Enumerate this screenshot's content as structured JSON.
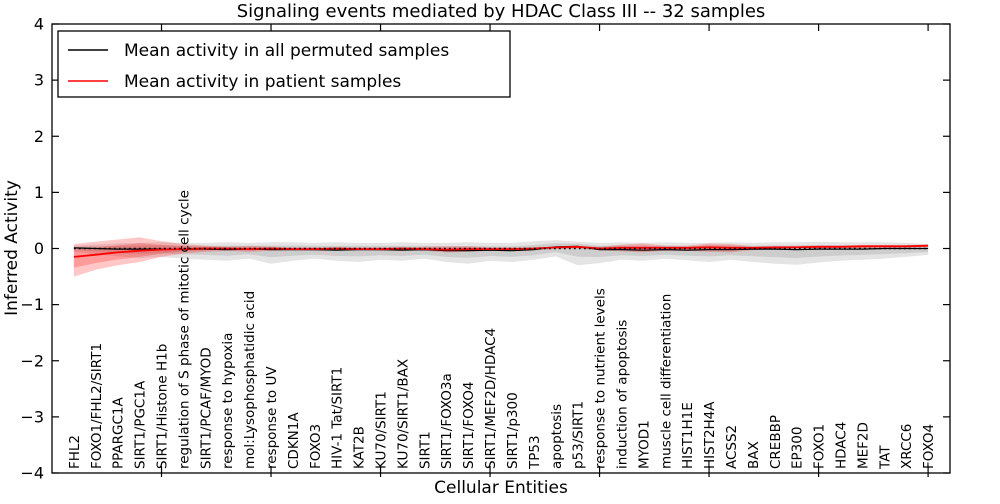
{
  "figure": {
    "title": "Signaling events mediated by HDAC Class III -- 32 samples",
    "xlabel": "Cellular Entities",
    "ylabel": "Inferred Activity"
  },
  "legend": {
    "entries": [
      {
        "label": "Mean activity in all permuted samples",
        "color": "#000000"
      },
      {
        "label": "Mean activity in patient samples",
        "color": "#ff0000"
      }
    ]
  },
  "chart_data": {
    "type": "line",
    "title": "Signaling events mediated by HDAC Class III -- 32 samples",
    "xlabel": "Cellular Entities",
    "ylabel": "Inferred Activity",
    "ylim": [
      -4,
      4
    ],
    "yticks": [
      4,
      3,
      2,
      1,
      0,
      -1,
      -2,
      -3,
      -4
    ],
    "grid": false,
    "legend_position": "upper left",
    "zero_line": {
      "style": "dotted",
      "color": "#000000",
      "y": 0
    },
    "categories": [
      "FHL2",
      "FOXO1/FHL2/SIRT1",
      "PPARGC1A",
      "SIRT1/PGC1A",
      "SIRT1/Histone H1b",
      "regulation of S phase of mitotic cell cycle",
      "SIRT1/PCAF/MYOD",
      "response to hypoxia",
      "mol:Lysophosphatidic acid",
      "response to UV",
      "CDKN1A",
      "FOXO3",
      "HIV-1 Tat/SIRT1",
      "KAT2B",
      "KU70/SIRT1",
      "KU70/SIRT1/BAX",
      "SIRT1",
      "SIRT1/FOXO3a",
      "SIRT1/FOXO4",
      "SIRT1/MEF2D/HDAC4",
      "SIRT1/p300",
      "TP53",
      "apoptosis",
      "p53/SIRT1",
      "response to nutrient levels",
      "induction of apoptosis",
      "MYOD1",
      "muscle cell differentiation",
      "HIST1H1E",
      "HIST2H4A",
      "ACSS2",
      "BAX",
      "CREBBP",
      "EP300",
      "FOXO1",
      "HDAC4",
      "MEF2D",
      "TAT",
      "XRCC6",
      "FOXO4"
    ],
    "series": [
      {
        "name": "Mean activity in all permuted samples",
        "color": "#000000",
        "values": [
          0.01,
          0.0,
          -0.01,
          -0.01,
          -0.01,
          -0.01,
          -0.01,
          -0.02,
          -0.01,
          -0.02,
          -0.02,
          -0.02,
          -0.03,
          -0.02,
          -0.02,
          -0.03,
          -0.02,
          -0.04,
          -0.04,
          -0.03,
          -0.04,
          -0.02,
          0.03,
          0.04,
          -0.02,
          -0.02,
          -0.03,
          -0.02,
          -0.03,
          -0.02,
          -0.02,
          -0.01,
          -0.01,
          -0.02,
          -0.01,
          -0.01,
          -0.01,
          0.0,
          0.0,
          0.0
        ]
      },
      {
        "name": "Mean activity in patient samples",
        "color": "#ff0000",
        "values": [
          -0.15,
          -0.11,
          -0.07,
          -0.04,
          -0.02,
          -0.01,
          0.0,
          0.0,
          -0.01,
          0.0,
          -0.01,
          -0.01,
          0.0,
          -0.01,
          -0.01,
          0.0,
          -0.01,
          -0.02,
          -0.01,
          -0.01,
          -0.01,
          0.0,
          0.02,
          0.03,
          0.0,
          0.01,
          0.01,
          0.01,
          0.01,
          0.02,
          0.01,
          0.01,
          0.02,
          0.02,
          0.03,
          0.03,
          0.04,
          0.04,
          0.04,
          0.05
        ]
      }
    ],
    "bands": [
      {
        "name": "permuted-samples-range",
        "color": "rgba(90,90,90,0.16)",
        "upper": [
          0.05,
          0.07,
          0.09,
          0.1,
          0.11,
          0.1,
          0.1,
          0.11,
          0.1,
          0.11,
          0.11,
          0.1,
          0.11,
          0.1,
          0.1,
          0.11,
          0.1,
          0.1,
          0.11,
          0.1,
          0.1,
          0.13,
          0.15,
          0.12,
          0.1,
          0.11,
          0.1,
          0.11,
          0.1,
          0.1,
          0.11,
          0.1,
          0.11,
          0.11,
          0.12,
          0.11,
          0.11,
          0.11,
          0.1,
          0.08
        ],
        "lower": [
          -0.06,
          -0.1,
          -0.14,
          -0.17,
          -0.15,
          -0.18,
          -0.2,
          -0.22,
          -0.18,
          -0.27,
          -0.22,
          -0.18,
          -0.22,
          -0.24,
          -0.2,
          -0.22,
          -0.18,
          -0.24,
          -0.27,
          -0.22,
          -0.24,
          -0.2,
          -0.14,
          -0.3,
          -0.26,
          -0.2,
          -0.22,
          -0.18,
          -0.21,
          -0.24,
          -0.2,
          -0.24,
          -0.27,
          -0.29,
          -0.25,
          -0.22,
          -0.2,
          -0.18,
          -0.15,
          -0.11
        ]
      },
      {
        "name": "patient-samples-range",
        "color": "rgba(255,0,0,0.22)",
        "upper": [
          0.08,
          0.12,
          0.16,
          0.2,
          0.13,
          0.08,
          0.05,
          0.03,
          0.05,
          0.03,
          0.02,
          0.02,
          0.02,
          0.02,
          0.02,
          0.02,
          0.03,
          0.04,
          0.04,
          0.02,
          0.02,
          0.02,
          0.03,
          0.04,
          0.03,
          0.07,
          0.09,
          0.05,
          0.05,
          0.09,
          0.08,
          0.04,
          0.04,
          0.05,
          0.05,
          0.05,
          0.06,
          0.06,
          0.06,
          0.07
        ],
        "lower": [
          -0.5,
          -0.38,
          -0.3,
          -0.24,
          -0.15,
          -0.09,
          -0.06,
          -0.04,
          -0.06,
          -0.04,
          -0.03,
          -0.04,
          -0.03,
          -0.03,
          -0.04,
          -0.03,
          -0.04,
          -0.07,
          -0.06,
          -0.04,
          -0.04,
          -0.03,
          -0.01,
          0.0,
          -0.03,
          -0.05,
          -0.07,
          -0.04,
          -0.04,
          -0.06,
          -0.07,
          -0.03,
          -0.01,
          0.0,
          0.0,
          0.01,
          0.01,
          0.02,
          0.02,
          0.03
        ]
      }
    ]
  }
}
